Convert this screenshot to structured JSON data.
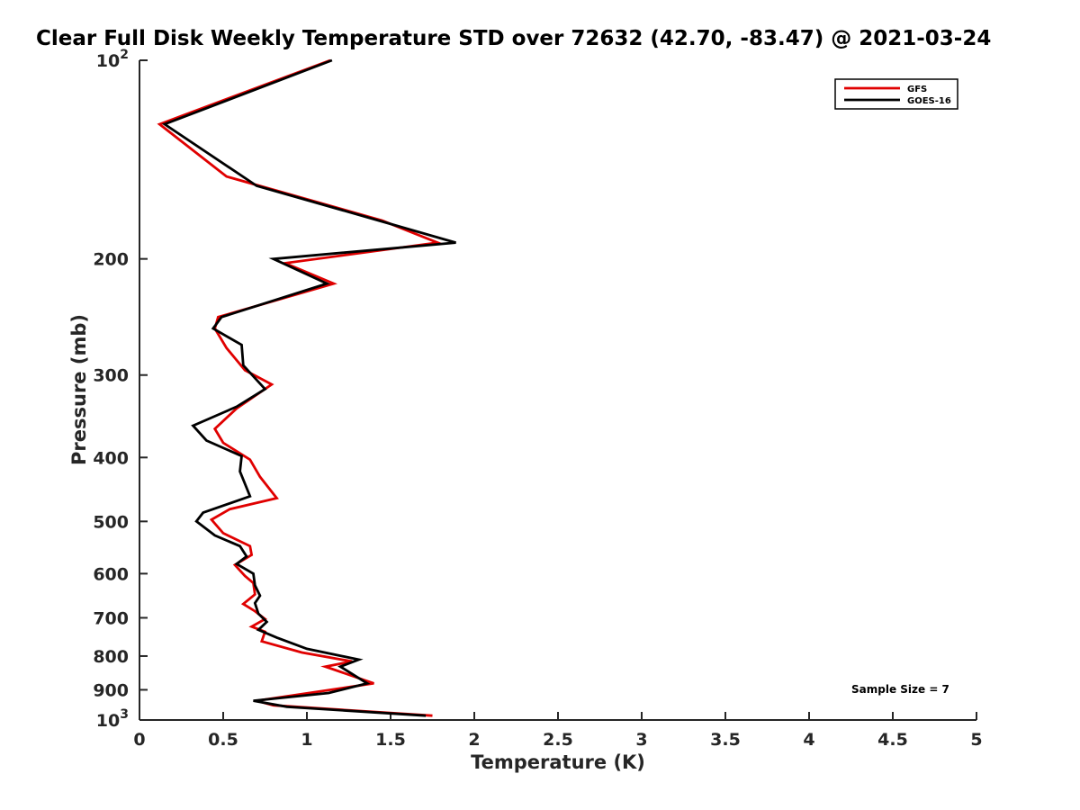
{
  "chart_data": {
    "type": "line",
    "title": "Clear Full Disk Weekly Temperature STD over 72632 (42.70, -83.47) @ 2021-03-24",
    "xlabel": "Temperature (K)",
    "ylabel": "Pressure (mb)",
    "xlim": [
      0,
      5
    ],
    "ylim": [
      100,
      1000
    ],
    "y_scale": "log",
    "y_reversed": true,
    "grid": false,
    "legend_position": "top-right",
    "x_ticks": [
      "0",
      "0.5",
      "1",
      "1.5",
      "2",
      "2.5",
      "3",
      "3.5",
      "4",
      "4.5",
      "5"
    ],
    "x_tick_values": [
      0,
      0.5,
      1,
      1.5,
      2,
      2.5,
      3,
      3.5,
      4,
      4.5,
      5
    ],
    "y_tick_values": [
      100,
      200,
      300,
      400,
      500,
      600,
      700,
      800,
      900,
      1000
    ],
    "y_tick_labels": [
      {
        "base": "10",
        "exp": "2"
      },
      {
        "base": "200",
        "exp": ""
      },
      {
        "base": "300",
        "exp": ""
      },
      {
        "base": "400",
        "exp": ""
      },
      {
        "base": "500",
        "exp": ""
      },
      {
        "base": "600",
        "exp": ""
      },
      {
        "base": "700",
        "exp": ""
      },
      {
        "base": "800",
        "exp": ""
      },
      {
        "base": "900",
        "exp": ""
      },
      {
        "base": "10",
        "exp": "3"
      }
    ],
    "series": [
      {
        "name": "GFS",
        "color": "#e00000",
        "points": [
          [
            1.14,
            100
          ],
          [
            0.12,
            125
          ],
          [
            0.52,
            150
          ],
          [
            1.45,
            175
          ],
          [
            1.78,
            189
          ],
          [
            0.87,
            203
          ],
          [
            1.16,
            218
          ],
          [
            0.47,
            245
          ],
          [
            0.45,
            255
          ],
          [
            0.52,
            273
          ],
          [
            0.63,
            295
          ],
          [
            0.79,
            310
          ],
          [
            0.58,
            337
          ],
          [
            0.45,
            362
          ],
          [
            0.5,
            380
          ],
          [
            0.66,
            403
          ],
          [
            0.72,
            428
          ],
          [
            0.82,
            461
          ],
          [
            0.54,
            479
          ],
          [
            0.43,
            497
          ],
          [
            0.5,
            521
          ],
          [
            0.66,
            545
          ],
          [
            0.67,
            562
          ],
          [
            0.57,
            582
          ],
          [
            0.63,
            605
          ],
          [
            0.68,
            620
          ],
          [
            0.69,
            645
          ],
          [
            0.62,
            667
          ],
          [
            0.69,
            684
          ],
          [
            0.75,
            703
          ],
          [
            0.67,
            722
          ],
          [
            0.75,
            735
          ],
          [
            0.73,
            760
          ],
          [
            0.97,
            790
          ],
          [
            1.27,
            815
          ],
          [
            1.11,
            830
          ],
          [
            1.4,
            880
          ],
          [
            0.7,
            935
          ],
          [
            0.8,
            950
          ],
          [
            1.75,
            985
          ]
        ]
      },
      {
        "name": "GOES-16",
        "color": "#000000",
        "points": [
          [
            1.15,
            100
          ],
          [
            0.15,
            125
          ],
          [
            0.7,
            155
          ],
          [
            1.43,
            175
          ],
          [
            1.89,
            189
          ],
          [
            0.8,
            200
          ],
          [
            1.12,
            218
          ],
          [
            0.49,
            245
          ],
          [
            0.44,
            255
          ],
          [
            0.61,
            270
          ],
          [
            0.62,
            290
          ],
          [
            0.75,
            315
          ],
          [
            0.58,
            335
          ],
          [
            0.32,
            358
          ],
          [
            0.4,
            377
          ],
          [
            0.61,
            398
          ],
          [
            0.6,
            420
          ],
          [
            0.66,
            458
          ],
          [
            0.38,
            485
          ],
          [
            0.34,
            500
          ],
          [
            0.45,
            525
          ],
          [
            0.6,
            545
          ],
          [
            0.64,
            565
          ],
          [
            0.58,
            580
          ],
          [
            0.68,
            600
          ],
          [
            0.69,
            625
          ],
          [
            0.72,
            648
          ],
          [
            0.69,
            665
          ],
          [
            0.71,
            690
          ],
          [
            0.76,
            710
          ],
          [
            0.71,
            730
          ],
          [
            0.82,
            750
          ],
          [
            1.0,
            780
          ],
          [
            1.31,
            810
          ],
          [
            1.2,
            830
          ],
          [
            1.36,
            880
          ],
          [
            1.13,
            910
          ],
          [
            0.68,
            935
          ],
          [
            0.88,
            955
          ],
          [
            1.71,
            985
          ]
        ]
      }
    ],
    "annotation": "Sample Size = 7"
  }
}
